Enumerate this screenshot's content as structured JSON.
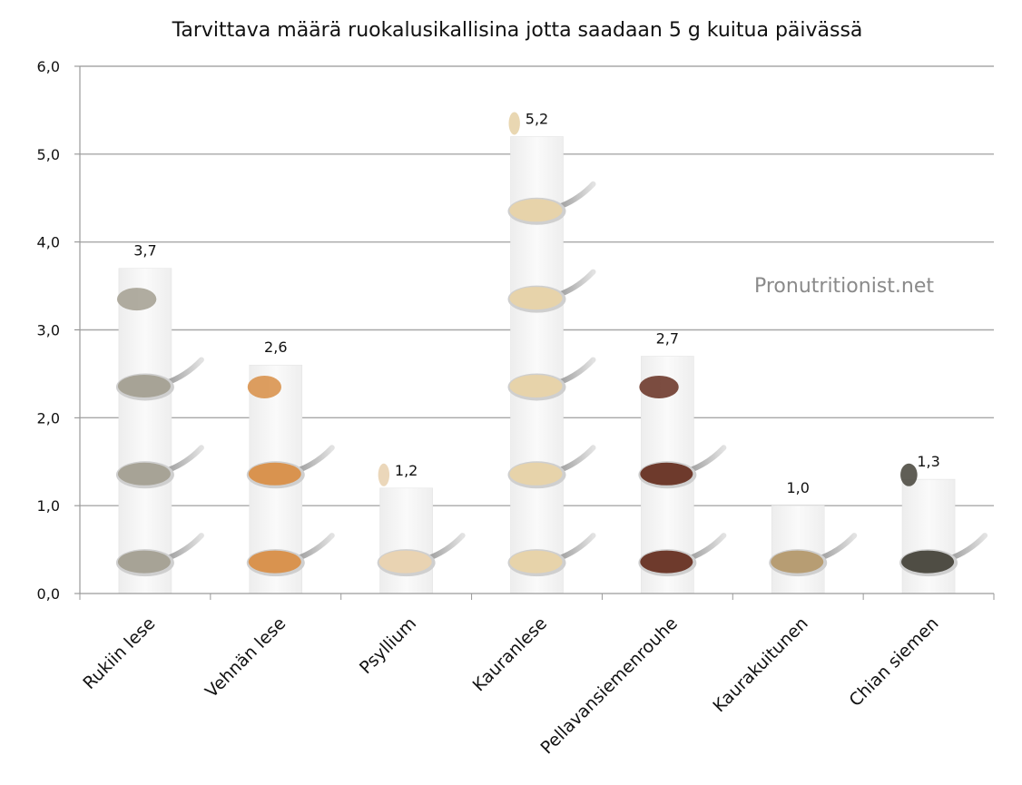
{
  "chart_data": {
    "type": "bar",
    "title": "Tarvittava määrä ruokalusikallisina jotta saadaan 5 g kuitua päivässä",
    "xlabel": "",
    "ylabel": "",
    "ylim": [
      0,
      6
    ],
    "ytick_step": 1,
    "ytick_labels": [
      "0,0",
      "1,0",
      "2,0",
      "3,0",
      "4,0",
      "5,0",
      "6,0"
    ],
    "grid": true,
    "legend": "none",
    "categories": [
      "Rukiin lese",
      "Vehnän lese",
      "Psyllium",
      "Kauranlese",
      "Pellavansiemenrouhe",
      "Kaurakuitunen",
      "Chian siemen"
    ],
    "values": [
      3.7,
      2.6,
      1.2,
      5.2,
      2.7,
      1.0,
      1.3
    ],
    "value_labels": [
      "3,7",
      "2,6",
      "1,2",
      "5,2",
      "2,7",
      "1,0",
      "1,3"
    ],
    "spoon_colors": [
      "#a7a396",
      "#d9934f",
      "#e9d3b2",
      "#e7d3aa",
      "#6e3a2c",
      "#b79d73",
      "#4f4d44"
    ],
    "watermark": "Pronutritionist.net"
  }
}
